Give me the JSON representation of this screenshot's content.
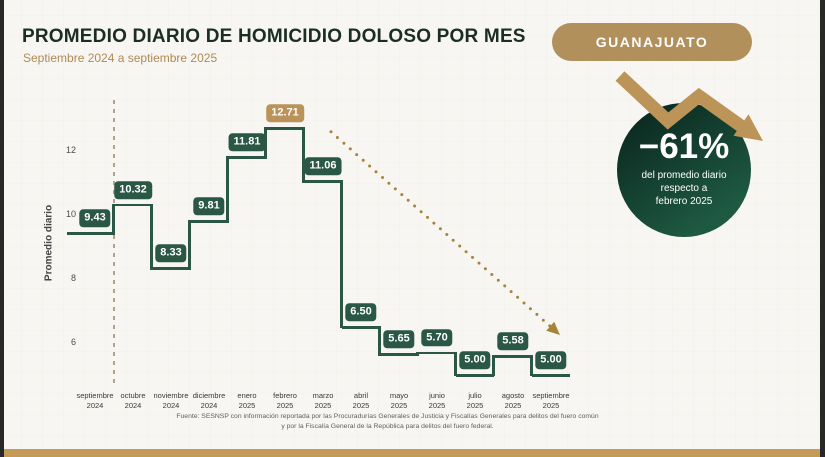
{
  "header": {
    "title": "PROMEDIO DIARIO DE HOMICIDIO DOLOSO POR MES",
    "subtitle": "Septiembre 2024 a septiembre 2025"
  },
  "badge": {
    "label": "GUANAJUATO"
  },
  "callout": {
    "value": "−61%",
    "line1": "del promedio diario",
    "line2": "respecto a",
    "line3": "febrero 2025"
  },
  "footer": {
    "source_line1": "Fuente: SESNSP con información reportada por las Procuradurías Generales de Justicia y Fiscalías Generales para delitos del fuero común",
    "source_line2": "y por la Fiscalía General de la República para delitos del fuero federal."
  },
  "colors": {
    "dark_green": "#2b5747",
    "gold": "#b2905c",
    "highlight_label": "#bb9257",
    "trend_dots": "#a5853a",
    "dashed_line": "#b5a183",
    "bottom_bar": "#c59a57",
    "circle_gradient_start": "#0c2a21",
    "circle_gradient_end": "#1e5a43"
  },
  "chart_data": {
    "type": "line",
    "subtype": "step",
    "title": "PROMEDIO DIARIO DE HOMICIDIO DOLOSO POR MES",
    "xlabel": "",
    "ylabel": "Promedio diario",
    "categories": [
      [
        "septiembre",
        "2024"
      ],
      [
        "octubre",
        "2024"
      ],
      [
        "noviembre",
        "2024"
      ],
      [
        "diciembre",
        "2024"
      ],
      [
        "enero",
        "2025"
      ],
      [
        "febrero",
        "2025"
      ],
      [
        "marzo",
        "2025"
      ],
      [
        "abril",
        "2025"
      ],
      [
        "mayo",
        "2025"
      ],
      [
        "junio",
        "2025"
      ],
      [
        "julio",
        "2025"
      ],
      [
        "agosto",
        "2025"
      ],
      [
        "septiembre",
        "2025"
      ]
    ],
    "values": [
      9.43,
      10.32,
      8.33,
      9.81,
      11.81,
      12.71,
      11.06,
      6.5,
      5.65,
      5.7,
      5.0,
      5.58,
      5.0
    ],
    "yticks": [
      6,
      8,
      10,
      12
    ],
    "ylim": [
      4.5,
      13.5
    ],
    "grid": false,
    "legend": false,
    "highlight_index": 5,
    "annotations": {
      "dashed_line_before_month": "octubre 2024",
      "trend_arrow": {
        "from_month": "marzo 2025",
        "from_value": 12.6,
        "to_month": "septiembre 2025",
        "to_value": 6.5
      }
    }
  }
}
